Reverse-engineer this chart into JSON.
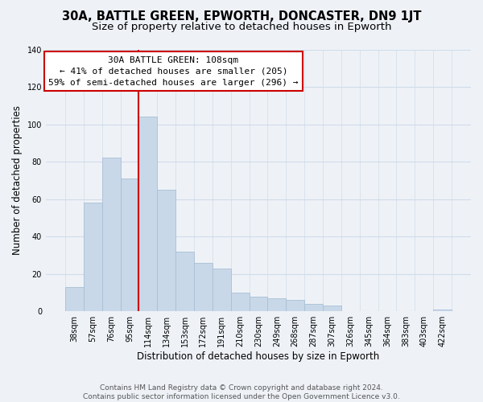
{
  "title": "30A, BATTLE GREEN, EPWORTH, DONCASTER, DN9 1JT",
  "subtitle": "Size of property relative to detached houses in Epworth",
  "xlabel": "Distribution of detached houses by size in Epworth",
  "ylabel": "Number of detached properties",
  "bar_color": "#c8d8e8",
  "bar_edge_color": "#aabfd4",
  "categories": [
    "38sqm",
    "57sqm",
    "76sqm",
    "95sqm",
    "114sqm",
    "134sqm",
    "153sqm",
    "172sqm",
    "191sqm",
    "210sqm",
    "230sqm",
    "249sqm",
    "268sqm",
    "287sqm",
    "307sqm",
    "326sqm",
    "345sqm",
    "364sqm",
    "383sqm",
    "403sqm",
    "422sqm"
  ],
  "values": [
    13,
    58,
    82,
    71,
    104,
    65,
    32,
    26,
    23,
    10,
    8,
    7,
    6,
    4,
    3,
    0,
    0,
    0,
    0,
    0,
    1
  ],
  "property_line_index": 4,
  "property_line_color": "#cc0000",
  "annotation_title": "30A BATTLE GREEN: 108sqm",
  "annotation_line1": "← 41% of detached houses are smaller (205)",
  "annotation_line2": "59% of semi-detached houses are larger (296) →",
  "annotation_box_facecolor": "#ffffff",
  "annotation_box_edgecolor": "#cc0000",
  "ylim": [
    0,
    140
  ],
  "yticks": [
    0,
    20,
    40,
    60,
    80,
    100,
    120,
    140
  ],
  "footer_line1": "Contains HM Land Registry data © Crown copyright and database right 2024.",
  "footer_line2": "Contains public sector information licensed under the Open Government Licence v3.0.",
  "background_color": "#eef2f7",
  "plot_background": "#eef2f7",
  "grid_color": "#d0dce8",
  "title_fontsize": 10.5,
  "subtitle_fontsize": 9.5,
  "xlabel_fontsize": 8.5,
  "ylabel_fontsize": 8.5,
  "tick_fontsize": 7,
  "annotation_fontsize": 8,
  "footer_fontsize": 6.5
}
